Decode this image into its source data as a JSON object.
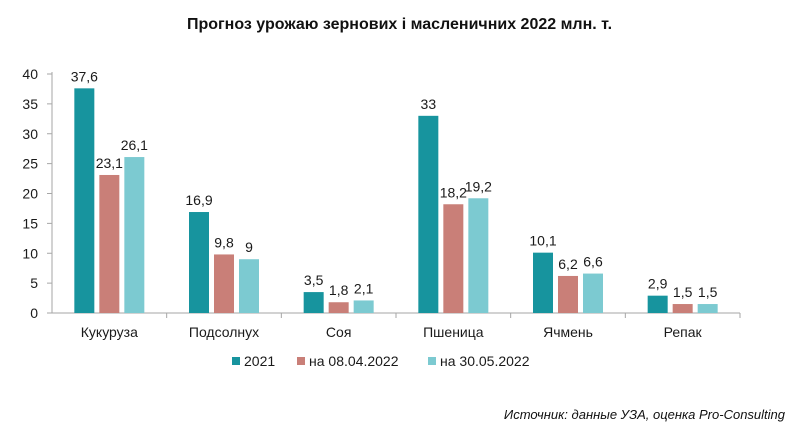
{
  "chart_data": {
    "type": "bar",
    "title": "Прогноз урожаю зернових і масленичних 2022 млн. т.",
    "categories": [
      "Кукуруза",
      "Подсолнух",
      "Соя",
      "Пшеница",
      "Ячмень",
      "Репак"
    ],
    "series": [
      {
        "name": "2021",
        "values": [
          37.6,
          16.9,
          3.5,
          33,
          10.1,
          2.9
        ],
        "labels": [
          "37,6",
          "16,9",
          "3,5",
          "33",
          "10,1",
          "2,9"
        ],
        "color": "#17949E"
      },
      {
        "name": "на 08.04.2022",
        "values": [
          23.1,
          9.8,
          1.8,
          18.2,
          6.2,
          1.5
        ],
        "labels": [
          "23,1",
          "9,8",
          "1,8",
          "18,2",
          "6,2",
          "1,5"
        ],
        "color": "#C97F78"
      },
      {
        "name": "на 30.05.2022",
        "values": [
          26.1,
          9,
          2.1,
          19.2,
          6.6,
          1.5
        ],
        "labels": [
          "26,1",
          "9",
          "2,1",
          "19,2",
          "6,6",
          "1,5"
        ],
        "color": "#7CCAD1"
      }
    ],
    "ylim": [
      0,
      40
    ],
    "yticks": [
      0,
      5,
      10,
      15,
      20,
      25,
      30,
      35,
      40
    ],
    "grid": false,
    "legend": "bottom",
    "xlabel": "",
    "ylabel": ""
  },
  "source_note": "Источник: данные УЗА, оценка Pro-Consulting"
}
